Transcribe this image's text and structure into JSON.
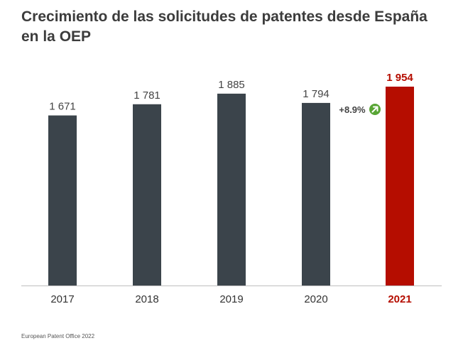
{
  "title": "Crecimiento de las solicitudes de patentes desde España en la OEP",
  "footer": "European Patent Office 2022",
  "colors": {
    "bar_default": "#3b444b",
    "bar_highlight": "#b50d00",
    "label_default": "#444444",
    "label_highlight": "#b50d00",
    "growth_icon": "#58a535",
    "growth_text": "#444444",
    "axis": "#bfbfbf"
  },
  "chart_data": {
    "type": "bar",
    "title": "Crecimiento de las solicitudes de patentes desde España en la OEP",
    "xlabel": "",
    "ylabel": "",
    "categories": [
      "2017",
      "2018",
      "2019",
      "2020",
      "2021"
    ],
    "values": [
      1671,
      1781,
      1885,
      1794,
      1954
    ],
    "value_labels": [
      "1 671",
      "1 781",
      "1 885",
      "1 794",
      "1 954"
    ],
    "highlight_index": 4,
    "ylim": [
      0,
      2000
    ],
    "grid": false,
    "legend": "none",
    "annotations": [
      {
        "text": "+8.9%",
        "icon": "arrow-up-right-icon",
        "between": [
          "2020",
          "2021"
        ]
      }
    ]
  }
}
